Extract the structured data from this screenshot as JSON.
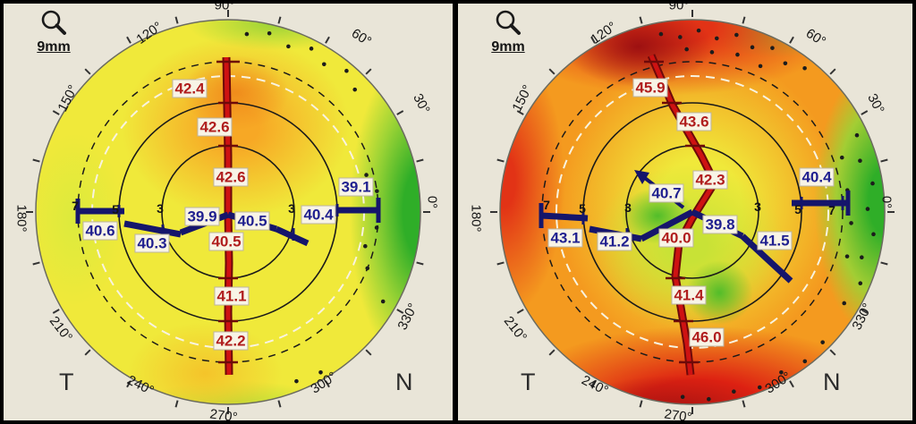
{
  "page": {
    "background_color": "#e9e5d8",
    "frame_color": "#000000"
  },
  "colors": {
    "steep_value_text": "#b01d1d",
    "flat_value_text": "#1f1f8f",
    "scale_green": "#2fae28",
    "scale_yellow_green": "#c8e236",
    "scale_yellow": "#f0e93a",
    "scale_orange": "#f7a825",
    "scale_red": "#e23316",
    "scale_dark_red": "#9d1011"
  },
  "chart_data": [
    {
      "name": "corneal-axial-curvature-map-left",
      "type": "heatmap",
      "projection": "polar",
      "zoom_label": "9mm",
      "corner_left": "T",
      "corner_right": "N",
      "angle_labels": [
        "90°",
        "120°",
        "150°",
        "180°",
        "210°",
        "240°",
        "270°",
        "300°",
        "330°",
        "0°",
        "30°",
        "60°"
      ],
      "steep_meridian_values": [
        "42.4",
        "42.6",
        "42.6",
        "40.5",
        "41.1",
        "42.2"
      ],
      "flat_meridian_values": [
        "40.6",
        "40.3",
        "39.9",
        "40.5",
        "40.4",
        "39.1"
      ],
      "zone_ring_marks": [
        "7",
        "5",
        "3",
        "3"
      ],
      "zone_rings_mm": [
        3,
        5,
        7,
        9
      ]
    },
    {
      "name": "corneal-axial-curvature-map-right",
      "type": "heatmap",
      "projection": "polar",
      "zoom_label": "9mm",
      "corner_left": "T",
      "corner_right": "N",
      "angle_labels": [
        "90°",
        "120°",
        "150°",
        "180°",
        "210°",
        "240°",
        "270°",
        "300°",
        "330°",
        "0°",
        "30°",
        "60°"
      ],
      "steep_meridian_values": [
        "45.9",
        "43.6",
        "42.3",
        "40.0",
        "41.4",
        "46.0"
      ],
      "flat_meridian_values": [
        "43.1",
        "41.2",
        "40.7",
        "39.8",
        "41.5",
        "40.4"
      ],
      "zone_ring_marks": [
        "7",
        "5",
        "3",
        "3",
        "5",
        "7"
      ],
      "zone_rings_mm": [
        3,
        5,
        7,
        9
      ]
    }
  ]
}
